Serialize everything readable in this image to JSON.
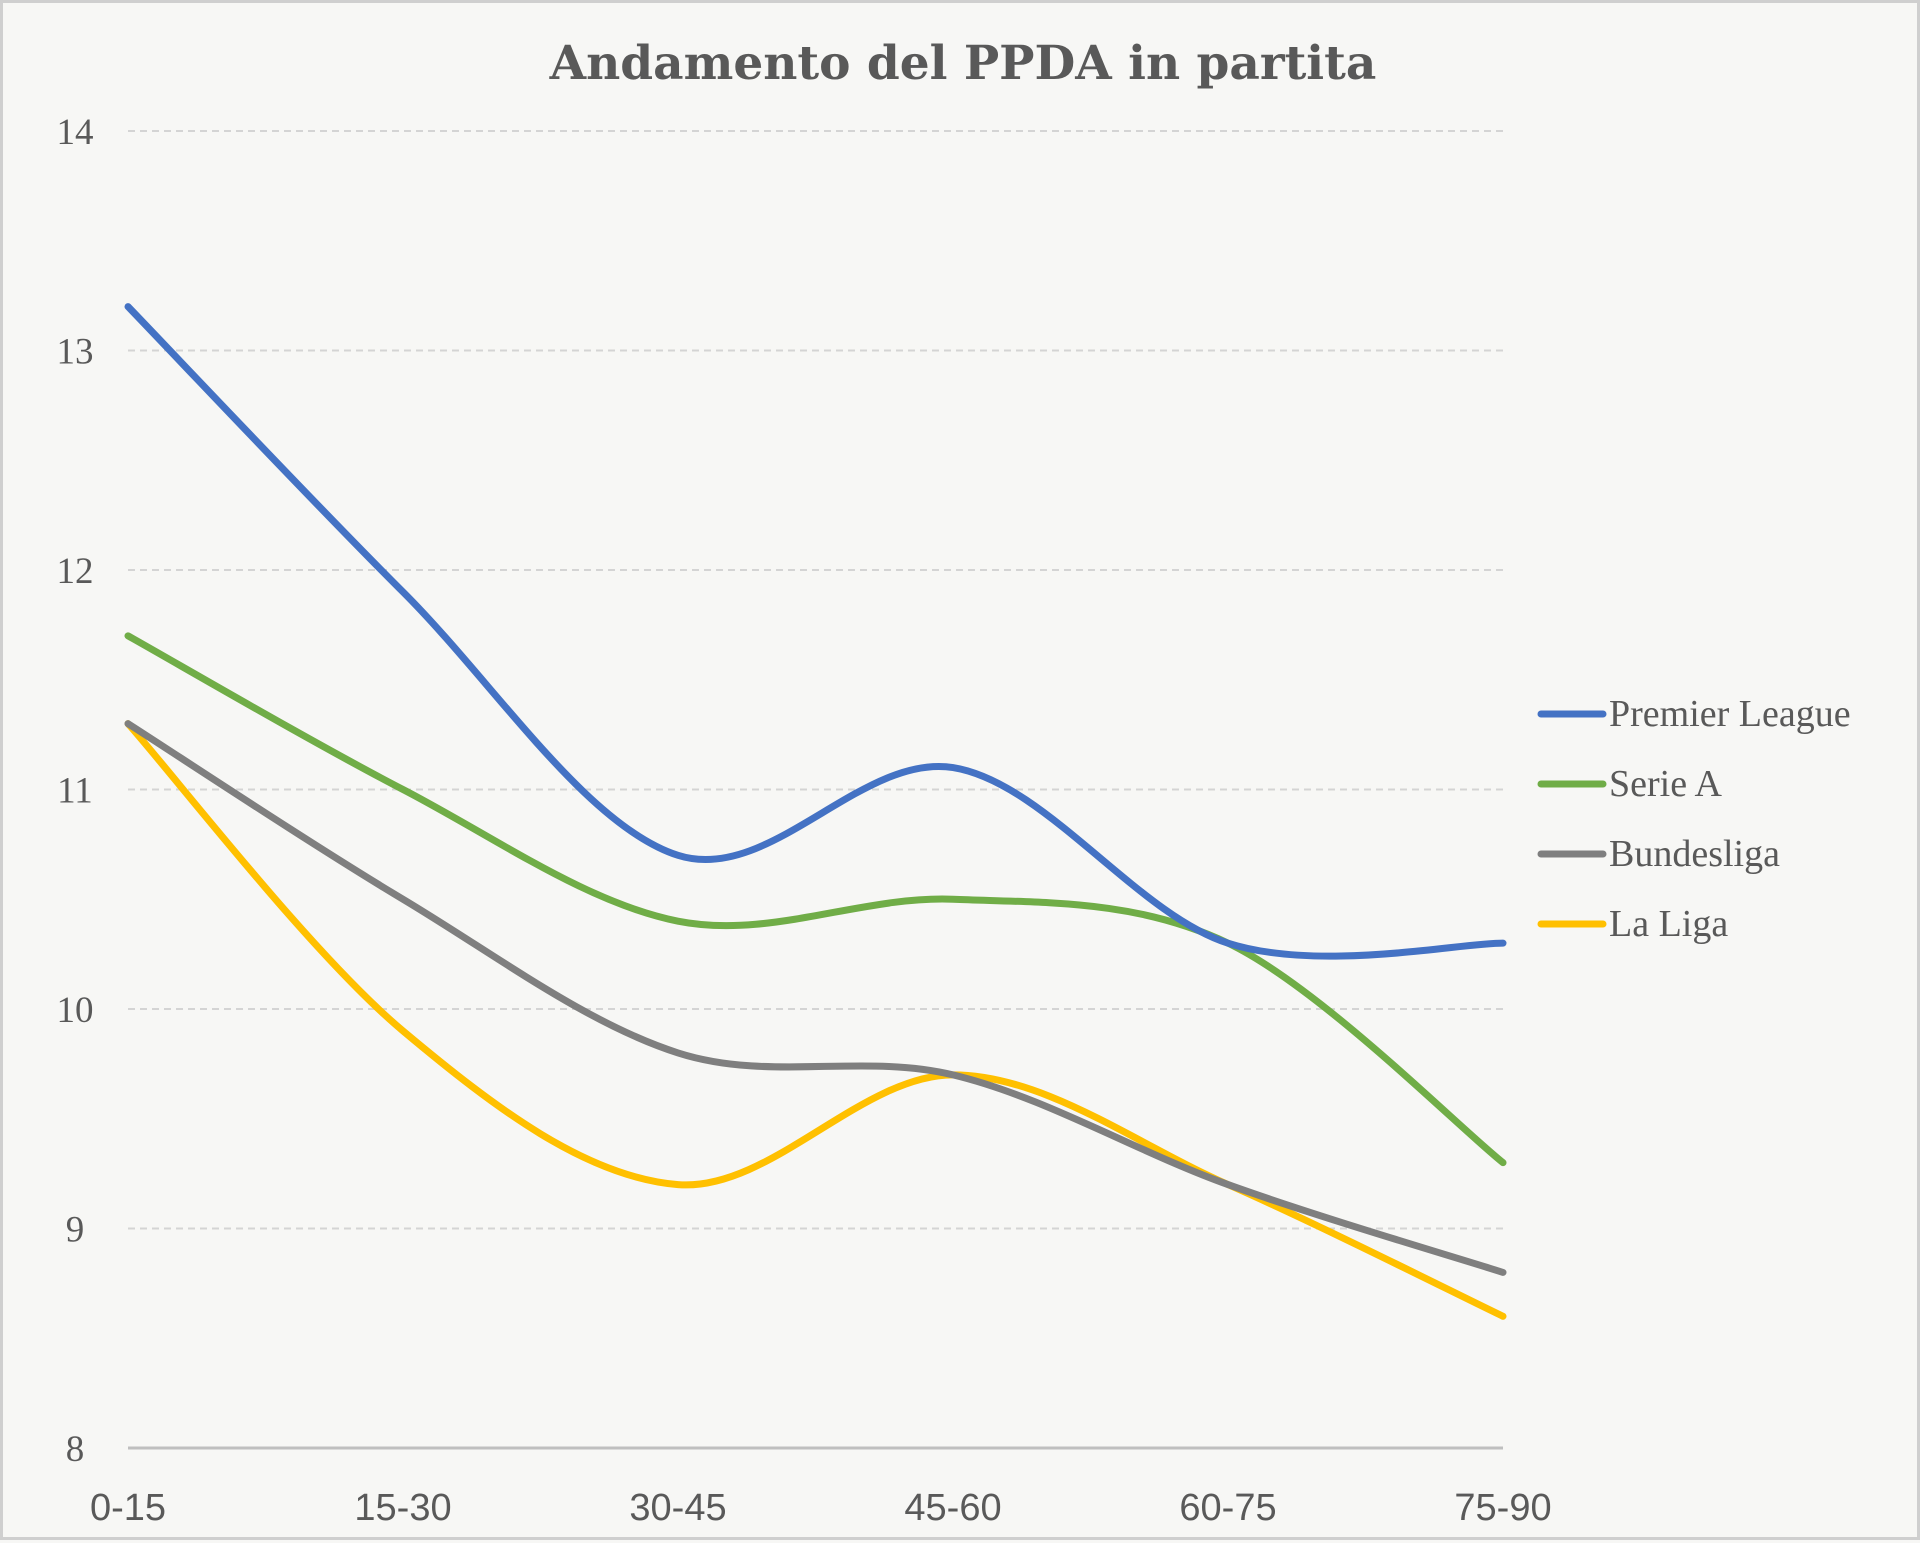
{
  "chart_data": {
    "type": "line",
    "title": "Andamento del PPDA in partita",
    "xlabel": "",
    "ylabel": "",
    "categories": [
      "0-15",
      "15-30",
      "30-45",
      "45-60",
      "60-75",
      "75-90"
    ],
    "ylim": [
      8,
      14
    ],
    "yticks": [
      "8",
      "9",
      "10",
      "11",
      "12",
      "13",
      "14"
    ],
    "grid": true,
    "legend_position": "right",
    "smooth": true,
    "series": [
      {
        "name": "Premier League",
        "color": "#4472c4",
        "values": [
          13.2,
          11.9,
          10.7,
          11.1,
          10.3,
          10.3
        ]
      },
      {
        "name": "Serie A",
        "color": "#70ad47",
        "values": [
          11.7,
          11.0,
          10.4,
          10.5,
          10.3,
          9.3
        ]
      },
      {
        "name": "Bundesliga",
        "color": "#7f7f7f",
        "values": [
          11.3,
          10.5,
          9.8,
          9.7,
          9.2,
          8.8
        ]
      },
      {
        "name": "La Liga",
        "color": "#ffc000",
        "values": [
          11.3,
          9.9,
          9.2,
          9.7,
          9.2,
          8.6
        ]
      }
    ]
  }
}
